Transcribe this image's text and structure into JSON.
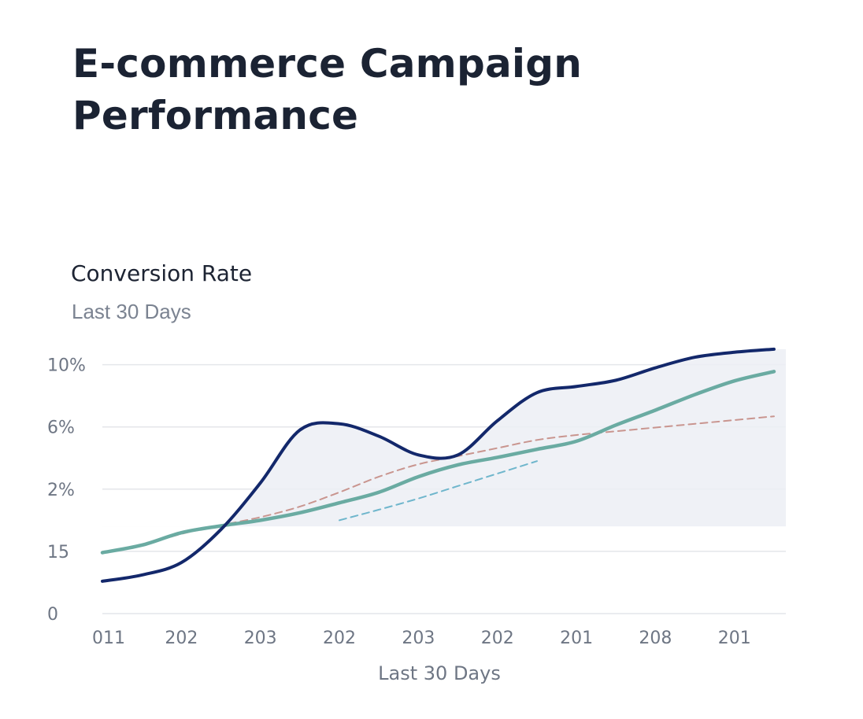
{
  "page": {
    "title": "E-commerce Campaign Performance"
  },
  "card": {
    "title": "Conversion Rate",
    "subtitle": "Last 30 Days"
  },
  "colors": {
    "primary_line": "#13286b",
    "secondary_line": "#6aaba2",
    "trend_red": "#c9958f",
    "trend_blue": "#6fb6cc",
    "fill": "#eceef4",
    "grid": "#e4e6ea",
    "text": "#6e7684"
  },
  "chart_data": {
    "type": "line",
    "title": "Conversion Rate",
    "subtitle": "Last 30 Days",
    "xlabel": "Last 30 Days",
    "ylabel": "",
    "x": [
      0,
      1,
      2,
      3,
      4,
      5,
      6,
      7,
      8,
      9,
      10,
      11,
      12,
      13,
      14,
      15,
      16,
      17
    ],
    "x_tick_labels": [
      "011",
      "202",
      "203",
      "202",
      "203",
      "202",
      "201",
      "208",
      "201"
    ],
    "x_tick_positions": [
      0,
      2,
      4,
      6,
      8,
      10,
      12,
      14,
      16
    ],
    "y_tick_labels": [
      "0",
      "15",
      "2%",
      "6%",
      "10%"
    ],
    "y_tick_positions": [
      0,
      1,
      2,
      3,
      4
    ],
    "ylim": [
      0,
      4.45
    ],
    "xlim": [
      0,
      17.3
    ],
    "grid": true,
    "legend": "none",
    "series": [
      {
        "style": "solid",
        "color": "#13286b",
        "values": [
          0.52,
          0.62,
          0.82,
          1.35,
          2.1,
          2.95,
          3.05,
          2.85,
          2.55,
          2.55,
          3.1,
          3.55,
          3.65,
          3.75,
          3.95,
          4.12,
          4.2,
          4.25
        ]
      },
      {
        "style": "solid",
        "color": "#6aaba2",
        "values": [
          0.98,
          1.1,
          1.3,
          1.41,
          1.5,
          1.62,
          1.78,
          1.95,
          2.2,
          2.39,
          2.51,
          2.64,
          2.77,
          3.03,
          3.27,
          3.52,
          3.74,
          3.89
        ]
      },
      {
        "style": "dashed",
        "color": "#c9958f",
        "values": [
          0.98,
          1.1,
          1.28,
          1.42,
          1.55,
          1.72,
          1.95,
          2.2,
          2.4,
          2.53,
          2.66,
          2.79,
          2.87,
          2.93,
          2.99,
          3.05,
          3.11,
          3.17
        ]
      },
      {
        "style": "dashed",
        "color": "#6fb6cc",
        "x": [
          6,
          7,
          8,
          9,
          10,
          11
        ],
        "values": [
          1.5,
          1.67,
          1.85,
          2.05,
          2.25,
          2.45
        ]
      }
    ],
    "shaded_region": {
      "x_range": [
        0,
        17.3
      ],
      "y_floor": 1.4,
      "upper_series": 0
    }
  }
}
